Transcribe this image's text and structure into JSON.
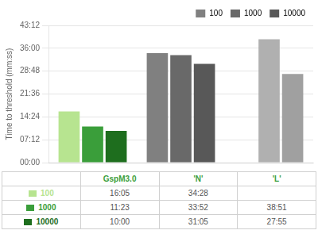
{
  "chart_data": {
    "type": "bar",
    "categories": [
      "GspM3.0",
      "'N'",
      "'L'"
    ],
    "series": [
      {
        "name": "100",
        "color": "#808080",
        "colors": [
          "#b7e490",
          "#808080",
          "#c0c0c0"
        ],
        "values": [
          965,
          2068,
          null
        ]
      },
      {
        "name": "1000",
        "color": "#696969",
        "colors": [
          "#3a9e3a",
          "#696969",
          "#b0b0b0"
        ],
        "values": [
          683,
          2032,
          2331
        ]
      },
      {
        "name": "10000",
        "color": "#585858",
        "colors": [
          "#1e6e1e",
          "#585858",
          "#a0a0a0"
        ],
        "values": [
          600,
          1865,
          1675
        ]
      }
    ],
    "ylabel": "Time to threshold (mm:ss)",
    "ylim": [
      0,
      2592
    ],
    "yticks": [
      {
        "value": 0,
        "label": "00:00"
      },
      {
        "value": 432,
        "label": "07:12"
      },
      {
        "value": 864,
        "label": "14:24"
      },
      {
        "value": 1296,
        "label": "21:36"
      },
      {
        "value": 1728,
        "label": "28:48"
      },
      {
        "value": 2160,
        "label": "36:00"
      },
      {
        "value": 2592,
        "label": "43:12"
      }
    ],
    "grid": true,
    "legend": "upper right",
    "tick_labels": "y",
    "table": {
      "color": "#3a9e3a",
      "columns": [
        "GspM3.0",
        "'N'",
        "'L'"
      ],
      "rows": [
        {
          "name": "100",
          "color": "#b7e490",
          "cells": [
            "16:05",
            "34:28",
            null
          ]
        },
        {
          "name": "1000",
          "color": "#3a9e3a",
          "cells": [
            "11:23",
            "33:52",
            "38:51"
          ]
        },
        {
          "name": "10000",
          "color": "#1e6e1e",
          "cells": [
            "10:00",
            "31:05",
            "27:55"
          ]
        }
      ]
    }
  }
}
